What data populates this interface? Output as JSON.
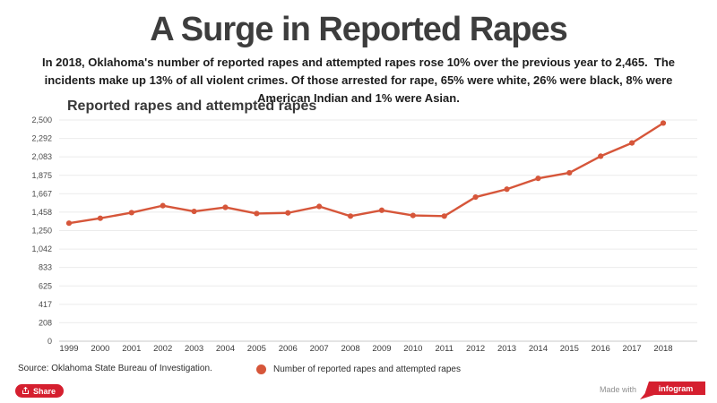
{
  "header": {
    "title": "A Surge in Reported Rapes",
    "subtitle": "In 2018, Oklahoma's number of reported rapes and attempted rapes rose 10% over the previous year to 2,465.  The incidents make up 13% of all violent crimes. Of those arrested for rape, 65% were white, 26% were black, 8% were American Indian and 1% were Asian."
  },
  "chart_data": {
    "type": "line",
    "title": "Reported rapes and attempted rapes",
    "x": [
      1999,
      2000,
      2001,
      2002,
      2003,
      2004,
      2005,
      2006,
      2007,
      2008,
      2009,
      2010,
      2011,
      2012,
      2013,
      2014,
      2015,
      2016,
      2017,
      2018
    ],
    "series": [
      {
        "name": "Number of reported rapes and attempted rapes",
        "values": [
          1334,
          1390,
          1453,
          1532,
          1467,
          1513,
          1443,
          1450,
          1523,
          1414,
          1480,
          1421,
          1414,
          1629,
          1718,
          1840,
          1903,
          2091,
          2241,
          2465
        ]
      }
    ],
    "xlabel": "",
    "ylabel": "",
    "ylim": [
      0,
      2500
    ],
    "yticks": [
      "0",
      "208",
      "417",
      "625",
      "833",
      "1,042",
      "1,250",
      "1,458",
      "1,667",
      "1,875",
      "2,083",
      "2,292",
      "2,500"
    ],
    "grid": true,
    "legend_position": "bottom"
  },
  "legend": {
    "label": "Number of reported rapes and attempted rapes"
  },
  "footer": {
    "source": "Source: Oklahoma State Bureau of Investigation.",
    "share_label": "Share",
    "made_with": "Made with",
    "brand": "infogram"
  },
  "colors": {
    "line": "#d6563a",
    "marker": "#d6563a",
    "grid": "#ebebeb",
    "axis_line": "#c9c9c9",
    "tick_text": "#4a4a4a",
    "brand_red": "#d51f2f",
    "title_text": "#3d3d3d"
  }
}
